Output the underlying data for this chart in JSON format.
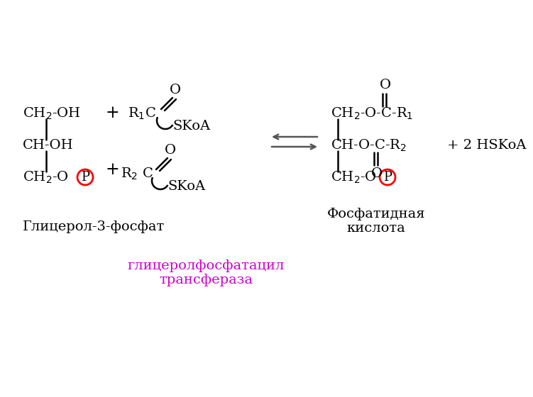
{
  "bg_color": "#ffffff",
  "fs": 14,
  "fs_sub": 11,
  "glycerol_label": "Глицерол-3-фосфат",
  "phosphatidic_line1": "Фосфатидная",
  "phosphatidic_line2": "кислота",
  "enzyme_text": "глицеролфосфатацил\nтрансфераза",
  "hskoa": "+ 2 HSKoA"
}
